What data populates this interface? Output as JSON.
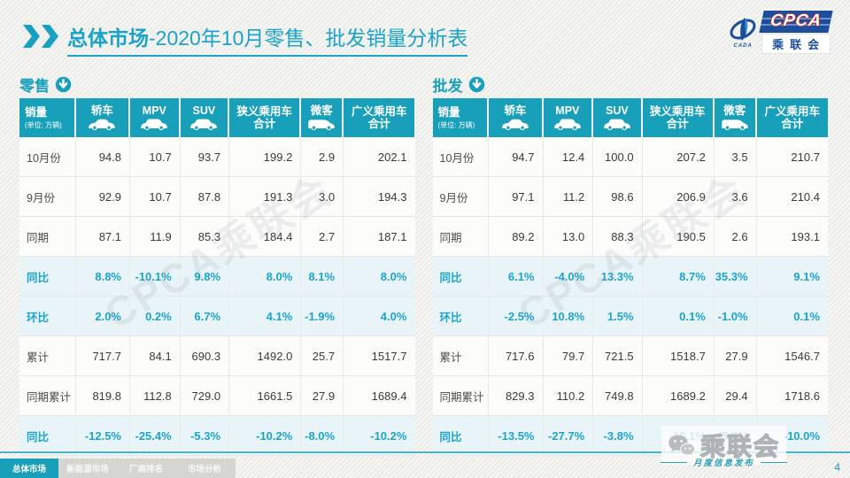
{
  "header": {
    "title_bold": "总体市场",
    "title_rest": "-2020年10月零售、批发销量分析表",
    "logo": {
      "cpca": "CPCA",
      "cada": "CADA",
      "name": "乘联会"
    }
  },
  "columns": [
    {
      "label": "销量",
      "sub": "(单位: 万辆)"
    },
    {
      "label": "轿车",
      "icon": "sedan"
    },
    {
      "label": "MPV",
      "icon": "mpv"
    },
    {
      "label": "SUV",
      "icon": "suv"
    },
    {
      "label": "狭义乘用车",
      "label2": "合计"
    },
    {
      "label": "微客",
      "icon": "van"
    },
    {
      "label": "广义乘用车",
      "label2": "合计"
    }
  ],
  "tables": [
    {
      "label": "零售",
      "rows": [
        {
          "label": "10月份",
          "type": "norm",
          "values": [
            "94.8",
            "10.7",
            "93.7",
            "199.2",
            "2.9",
            "202.1"
          ]
        },
        {
          "label": "9月份",
          "type": "norm",
          "values": [
            "92.9",
            "10.7",
            "87.8",
            "191.3",
            "3.0",
            "194.3"
          ]
        },
        {
          "label": "同期",
          "type": "norm",
          "values": [
            "87.1",
            "11.9",
            "85.3",
            "184.4",
            "2.7",
            "187.1"
          ]
        },
        {
          "label": "同比",
          "type": "rate",
          "values": [
            "8.8%",
            "-10.1%",
            "9.8%",
            "8.0%",
            "8.1%",
            "8.0%"
          ]
        },
        {
          "label": "环比",
          "type": "rate",
          "values": [
            "2.0%",
            "0.2%",
            "6.7%",
            "4.1%",
            "-1.9%",
            "4.0%"
          ]
        },
        {
          "label": "累计",
          "type": "norm",
          "values": [
            "717.7",
            "84.1",
            "690.3",
            "1492.0",
            "25.7",
            "1517.7"
          ]
        },
        {
          "label": "同期累计",
          "type": "norm",
          "values": [
            "819.8",
            "112.8",
            "729.0",
            "1661.5",
            "27.9",
            "1689.4"
          ]
        },
        {
          "label": "同比",
          "type": "rate",
          "values": [
            "-12.5%",
            "-25.4%",
            "-5.3%",
            "-10.2%",
            "-8.0%",
            "-10.2%"
          ]
        }
      ]
    },
    {
      "label": "批发",
      "rows": [
        {
          "label": "10月份",
          "type": "norm",
          "values": [
            "94.7",
            "12.4",
            "100.0",
            "207.2",
            "3.5",
            "210.7"
          ]
        },
        {
          "label": "9月份",
          "type": "norm",
          "values": [
            "97.1",
            "11.2",
            "98.6",
            "206.9",
            "3.6",
            "210.4"
          ]
        },
        {
          "label": "同期",
          "type": "norm",
          "values": [
            "89.2",
            "13.0",
            "88.3",
            "190.5",
            "2.6",
            "193.1"
          ]
        },
        {
          "label": "同比",
          "type": "rate",
          "values": [
            "6.1%",
            "-4.0%",
            "13.3%",
            "8.7%",
            "35.3%",
            "9.1%"
          ]
        },
        {
          "label": "环比",
          "type": "rate",
          "values": [
            "-2.5%",
            "10.8%",
            "1.5%",
            "0.1%",
            "-1.0%",
            "0.1%"
          ]
        },
        {
          "label": "累计",
          "type": "norm",
          "values": [
            "717.6",
            "79.7",
            "721.5",
            "1518.7",
            "27.9",
            "1546.7"
          ]
        },
        {
          "label": "同期累计",
          "type": "norm",
          "values": [
            "829.3",
            "110.2",
            "749.8",
            "1689.2",
            "29.4",
            "1718.6"
          ]
        },
        {
          "label": "同比",
          "type": "rate",
          "values": [
            "-13.5%",
            "-27.7%",
            "-3.8%",
            "-10.1%",
            "-5.2%",
            "-10.0%"
          ]
        }
      ]
    }
  ],
  "watermark": "CPCA乘联会",
  "footer": {
    "tabs": [
      {
        "label": "总体市场",
        "active": true
      },
      {
        "label": "新能源市场",
        "active": false
      },
      {
        "label": "厂商排名",
        "active": false
      },
      {
        "label": "市场分析",
        "active": false
      }
    ],
    "wechat_name": "乘联会",
    "publication": "月度信息发布",
    "page_number": "4"
  },
  "colors": {
    "accent_teal": "#18a0bb",
    "title_teal": "#1aa3c7",
    "rate_text": "#1ba4cb",
    "rate_bg": "#e9f4f9",
    "logo_blue": "#1b4f9e",
    "logo_red": "#c3272b"
  }
}
